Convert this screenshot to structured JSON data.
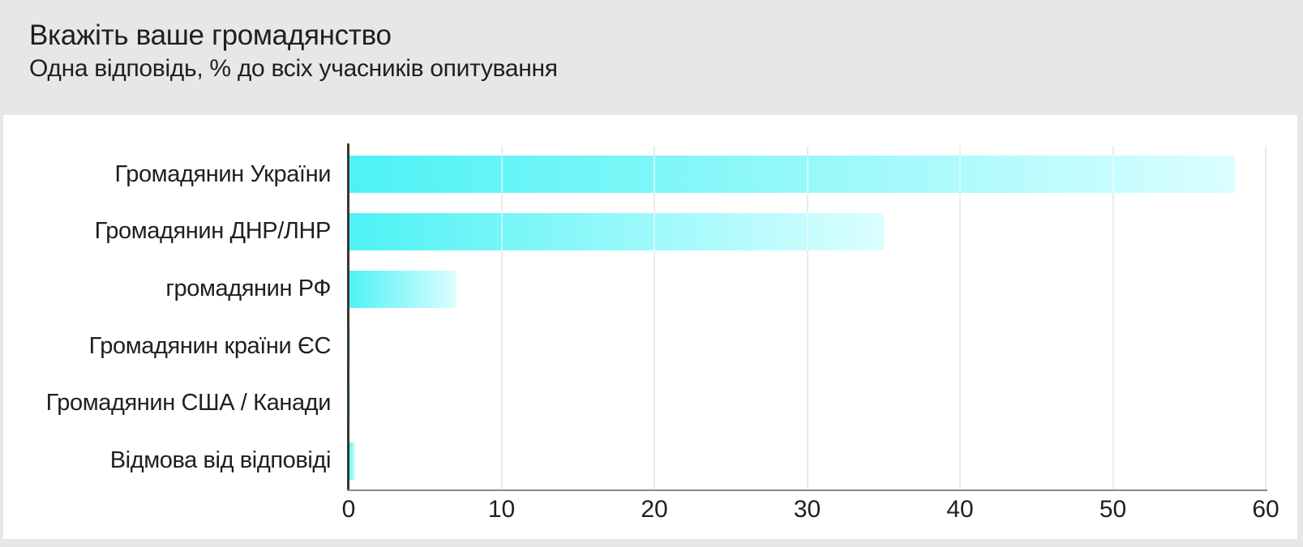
{
  "header": {
    "title": "Вкажіть ваше громадянство",
    "subtitle": "Одна відповідь, % до всіх учасників опитування"
  },
  "chart_data": {
    "type": "bar",
    "orientation": "horizontal",
    "title": "Вкажіть ваше громадянство",
    "subtitle": "Одна відповідь, % до всіх учасників опитування",
    "categories": [
      "Громадянин України",
      "Громадянин ДНР/ЛНР",
      "громадянин РФ",
      "Громадянин країни ЄС",
      "Громадянин США / Канади",
      "Відмова від відповіді"
    ],
    "values": [
      58,
      35,
      7,
      0.1,
      0.1,
      0.4
    ],
    "unit": "%",
    "xlabel": "",
    "ylabel": "",
    "xlim": [
      0,
      60
    ],
    "xticks": [
      0,
      10,
      20,
      30,
      40,
      50,
      60
    ],
    "grid": "vertical-only",
    "legend": "none"
  },
  "style": {
    "page_bg": "#e8e7e7",
    "panel_bg": "#ffffff",
    "text_color": "#1f1f1f",
    "bar_gradient_start": "#4df2f5",
    "bar_gradient_end": "#dbfeff",
    "gridline_color": "#d2d2d2",
    "x_axis_color": "#8a8a8a",
    "y_axis_color": "#3a3632"
  }
}
